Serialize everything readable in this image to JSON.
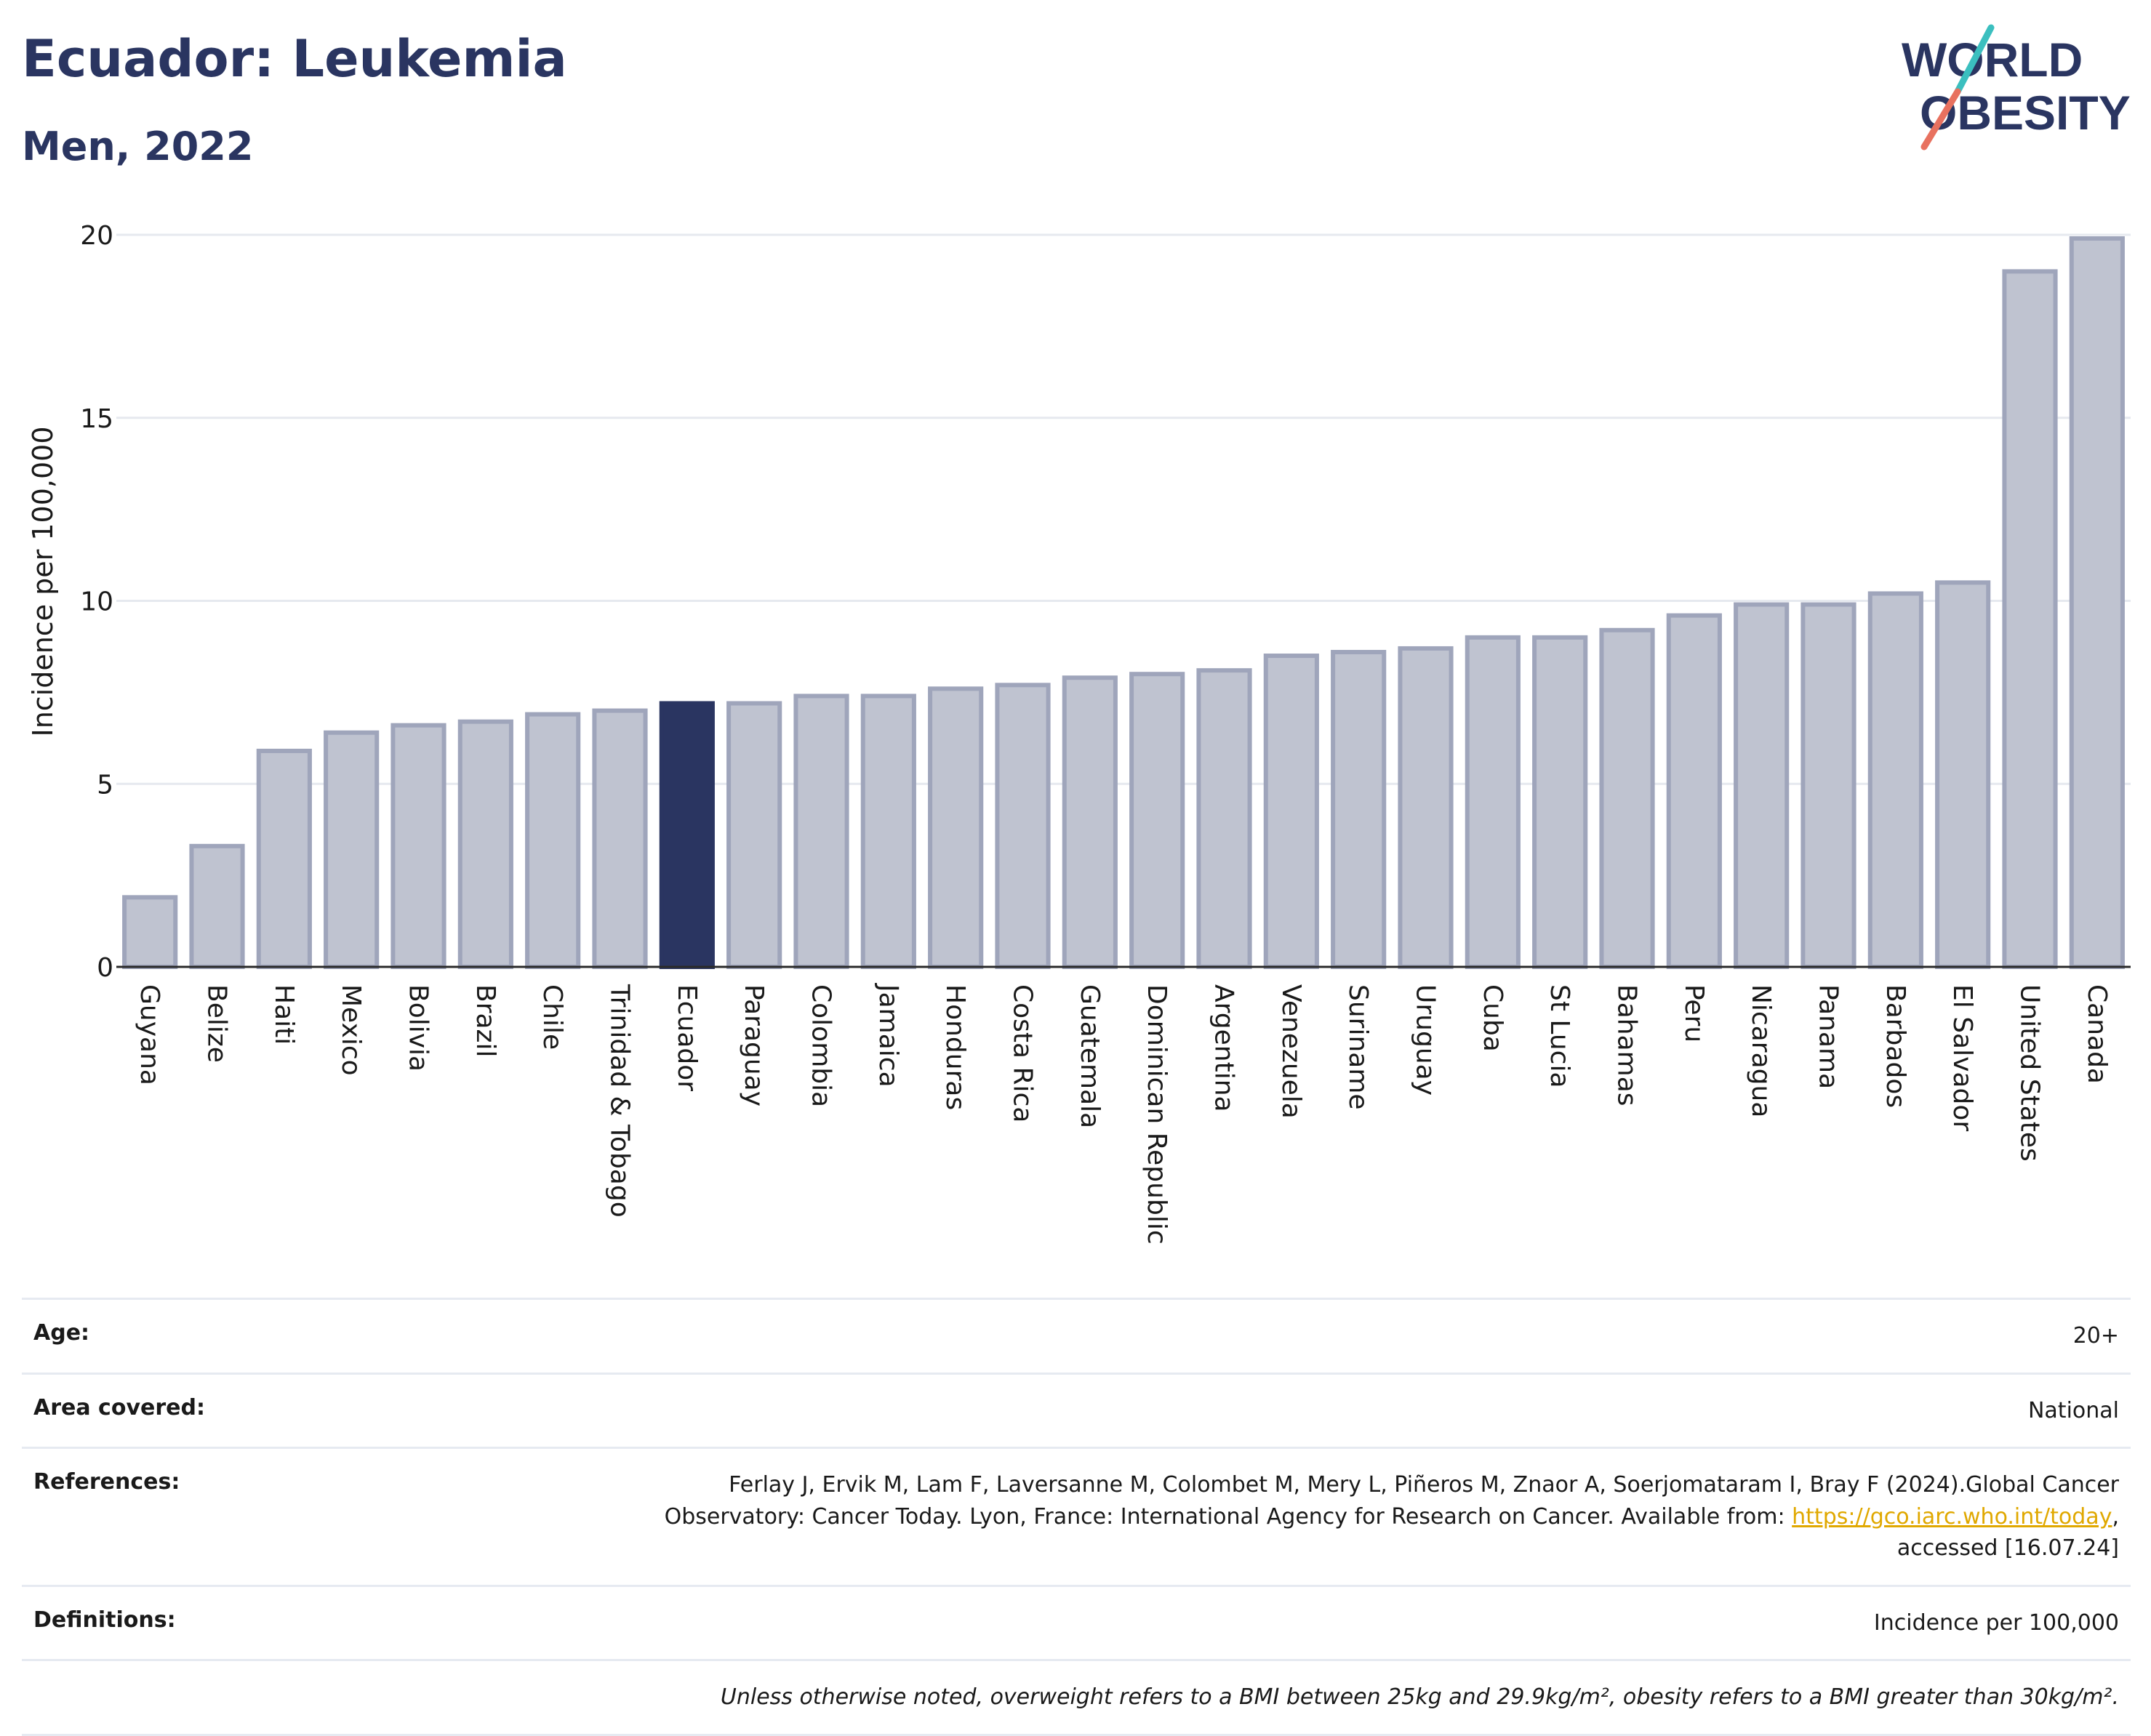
{
  "header": {
    "title": "Ecuador: Leukemia",
    "subtitle": "Men, 2022"
  },
  "logo": {
    "line1": "WORLD",
    "line2": "OBESITY"
  },
  "colors": {
    "highlight": "#2a3561",
    "bar": "#bfc3d0",
    "bar_stroke": "#9fa5bb",
    "grid": "#e6e9ef",
    "logo_slash_top": "#3bbfbf",
    "logo_slash_bottom": "#e8715f"
  },
  "chart_data": {
    "type": "bar",
    "ylabel": "Incidence per 100,000",
    "ylim": [
      0,
      20
    ],
    "yticks": [
      0,
      5,
      10,
      15,
      20
    ],
    "grid": true,
    "highlight": "Ecuador",
    "categories": [
      "Guyana",
      "Belize",
      "Haiti",
      "Mexico",
      "Bolivia",
      "Brazil",
      "Chile",
      "Trinidad & Tobago",
      "Ecuador",
      "Paraguay",
      "Colombia",
      "Jamaica",
      "Honduras",
      "Costa Rica",
      "Guatemala",
      "Dominican Republic",
      "Argentina",
      "Venezuela",
      "Suriname",
      "Uruguay",
      "Cuba",
      "St Lucia",
      "Bahamas",
      "Peru",
      "Nicaragua",
      "Panama",
      "Barbados",
      "El Salvador",
      "United States",
      "Canada"
    ],
    "values": [
      1.9,
      3.3,
      5.9,
      6.4,
      6.6,
      6.7,
      6.9,
      7.0,
      7.2,
      7.2,
      7.4,
      7.4,
      7.6,
      7.7,
      7.9,
      8.0,
      8.1,
      8.5,
      8.6,
      8.7,
      9.0,
      9.0,
      9.2,
      9.6,
      9.9,
      9.9,
      10.2,
      10.5,
      19.0,
      19.9
    ]
  },
  "info": {
    "age_label": "Age:",
    "age_value": "20+",
    "area_label": "Area covered:",
    "area_value": "National",
    "references_label": "References:",
    "references_line1": "Ferlay J, Ervik M, Lam F, Laversanne M, Colombet M, Mery L, Piñeros M, Znaor A, Soerjomataram I, Bray F (2024).Global Cancer",
    "references_line2": "Observatory: Cancer Today. Lyon, France: International Agency for Research on Cancer. Available from: ",
    "references_link": "https://gco.iarc.who.int/today",
    "references_line2_end": ",",
    "references_line3": "accessed [16.07.24]",
    "definitions_label": "Definitions:",
    "definitions_value": "Incidence per 100,000",
    "note": "Unless otherwise noted, overweight refers to a BMI between 25kg and 29.9kg/m², obesity refers to a BMI greater than 30kg/m²."
  }
}
